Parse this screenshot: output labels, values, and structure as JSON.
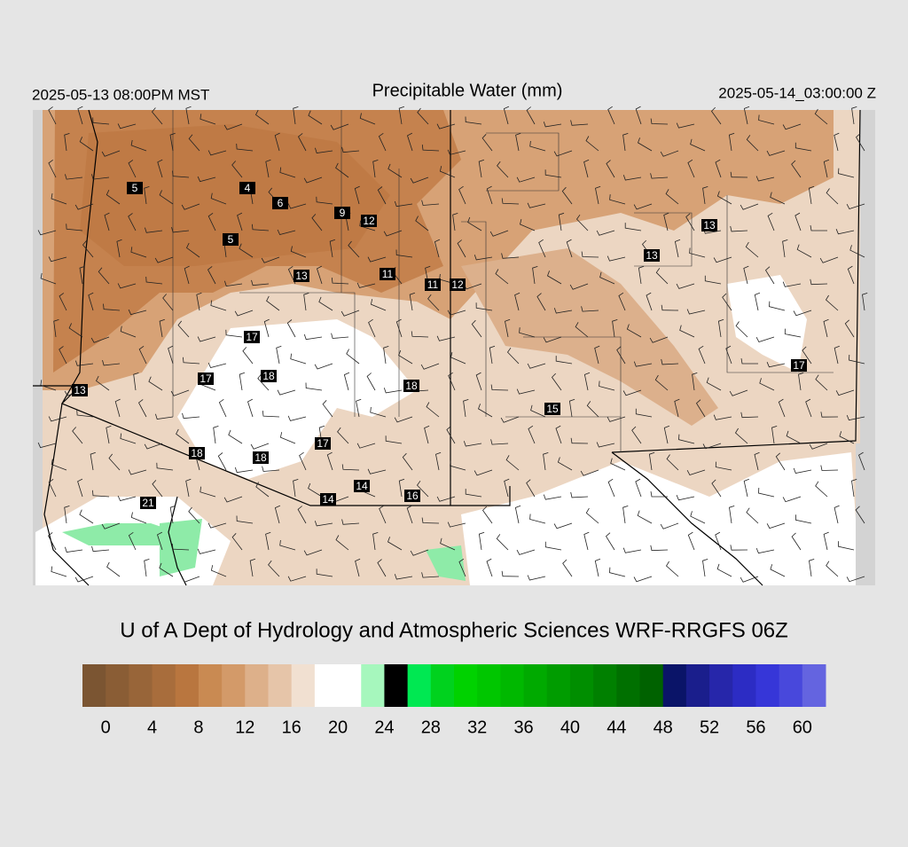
{
  "header": {
    "valid_local": "2025-05-13 08:00PM MST",
    "title": "Precipitable Water (mm)",
    "valid_utc": "2025-05-14_03:00:00 Z"
  },
  "stations": [
    5,
    4,
    6,
    9,
    12,
    5,
    13,
    11,
    11,
    12,
    13,
    13,
    17,
    18,
    17,
    18,
    13,
    17,
    15,
    17,
    18,
    18,
    14,
    14,
    16,
    21
  ],
  "credit": "U of A Dept of Hydrology and Atmospheric Sciences WRF-RRGFS 06Z",
  "colorbar": {
    "lim": [
      -2,
      62
    ],
    "ticks": [
      0,
      4,
      8,
      12,
      16,
      20,
      24,
      28,
      32,
      36,
      40,
      44,
      48,
      52,
      56,
      60
    ],
    "colors": [
      "#7b5532",
      "#8a5d35",
      "#986539",
      "#a86d3c",
      "#b9763f",
      "#c98a52",
      "#d39a69",
      "#ddb08a",
      "#e6c5a9",
      "#f1e0d1",
      "#ffffff",
      "#ffffff",
      "#a6f7bd",
      "#7eea0",
      "#00e852",
      "#00d21e",
      "#00d200",
      "#00c600",
      "#00b800",
      "#00aa00",
      "#009c00",
      "#008e00",
      "#008000",
      "#007000",
      "#006200",
      "#0a1468",
      "#1a1e8c",
      "#2626aa",
      "#2c2cc4",
      "#3636d8",
      "#4848dc",
      "#6464e0"
    ]
  }
}
